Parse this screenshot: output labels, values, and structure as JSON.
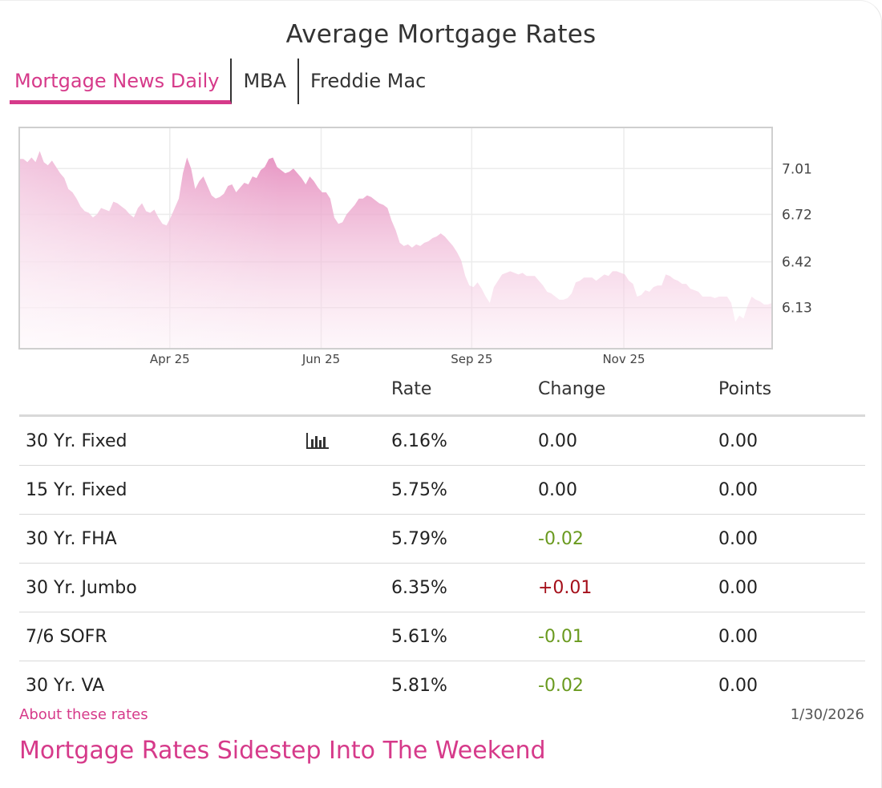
{
  "header": {
    "title": "Average Mortgage Rates"
  },
  "tabs": [
    {
      "label": "Mortgage News Daily",
      "active": true
    },
    {
      "label": "MBA",
      "active": false
    },
    {
      "label": "Freddie Mac",
      "active": false
    }
  ],
  "chart_data": {
    "type": "area",
    "title": "",
    "xlabel": "",
    "ylabel": "",
    "x_tick_labels": [
      "Apr 25",
      "Jun 25",
      "Sep 25",
      "Nov 25"
    ],
    "y_tick_labels": [
      "7.01",
      "6.72",
      "6.42",
      "6.13"
    ],
    "y_ticks": [
      7.01,
      6.72,
      6.42,
      6.13
    ],
    "ylim": [
      5.87,
      7.27
    ],
    "grid": true,
    "legend": "none",
    "fill_color": "#e58bbd",
    "series": [
      {
        "values": [
          7.07,
          7.07,
          7.05,
          7.08,
          7.05,
          7.12,
          7.05,
          7.03,
          7.06,
          7.02,
          6.98,
          6.95,
          6.88,
          6.86,
          6.82,
          6.77,
          6.74,
          6.73,
          6.7,
          6.72,
          6.76,
          6.75,
          6.74,
          6.8,
          6.79,
          6.77,
          6.75,
          6.72,
          6.7,
          6.76,
          6.79,
          6.74,
          6.73,
          6.75,
          6.7,
          6.66,
          6.65,
          6.7,
          6.76,
          6.82,
          6.98,
          7.08,
          7.01,
          6.88,
          6.93,
          6.96,
          6.9,
          6.84,
          6.82,
          6.83,
          6.85,
          6.9,
          6.91,
          6.86,
          6.89,
          6.92,
          6.91,
          6.96,
          6.95,
          7.0,
          7.02,
          7.07,
          7.08,
          7.02,
          7.0,
          6.98,
          6.99,
          7.01,
          6.98,
          6.95,
          6.91,
          6.96,
          6.93,
          6.89,
          6.86,
          6.86,
          6.82,
          6.7,
          6.66,
          6.67,
          6.72,
          6.75,
          6.78,
          6.82,
          6.82,
          6.84,
          6.83,
          6.81,
          6.79,
          6.78,
          6.76,
          6.68,
          6.62,
          6.54,
          6.52,
          6.53,
          6.51,
          6.53,
          6.52,
          6.54,
          6.55,
          6.57,
          6.58,
          6.6,
          6.58,
          6.55,
          6.52,
          6.48,
          6.43,
          6.33,
          6.27,
          6.26,
          6.29,
          6.25,
          6.2,
          6.16,
          6.26,
          6.3,
          6.34,
          6.35,
          6.36,
          6.35,
          6.34,
          6.35,
          6.33,
          6.33,
          6.33,
          6.3,
          6.27,
          6.23,
          6.22,
          6.2,
          6.18,
          6.18,
          6.19,
          6.22,
          6.29,
          6.3,
          6.32,
          6.32,
          6.32,
          6.3,
          6.32,
          6.34,
          6.33,
          6.36,
          6.36,
          6.35,
          6.34,
          6.3,
          6.28,
          6.2,
          6.21,
          6.24,
          6.23,
          6.26,
          6.27,
          6.27,
          6.34,
          6.33,
          6.31,
          6.3,
          6.28,
          6.28,
          6.25,
          6.24,
          6.23,
          6.2,
          6.2,
          6.2,
          6.19,
          6.2,
          6.2,
          6.2,
          6.16,
          6.04,
          6.08,
          6.06,
          6.14,
          6.2,
          6.18,
          6.17,
          6.15,
          6.15,
          6.16
        ]
      }
    ]
  },
  "table": {
    "headers": {
      "rate": "Rate",
      "change": "Change",
      "points": "Points"
    },
    "chart_icon": "bar-chart-icon",
    "rows": [
      {
        "name": "30 Yr. Fixed",
        "rate": "6.16%",
        "change": "0.00",
        "change_dir": "zero",
        "points": "0.00",
        "has_chart_icon": true
      },
      {
        "name": "15 Yr. Fixed",
        "rate": "5.75%",
        "change": "0.00",
        "change_dir": "zero",
        "points": "0.00"
      },
      {
        "name": "30 Yr. FHA",
        "rate": "5.79%",
        "change": "-0.02",
        "change_dir": "neg",
        "points": "0.00"
      },
      {
        "name": "30 Yr. Jumbo",
        "rate": "6.35%",
        "change": "+0.01",
        "change_dir": "pos",
        "points": "0.00"
      },
      {
        "name": "7/6 SOFR",
        "rate": "5.61%",
        "change": "-0.01",
        "change_dir": "neg",
        "points": "0.00"
      },
      {
        "name": "30 Yr. VA",
        "rate": "5.81%",
        "change": "-0.02",
        "change_dir": "neg",
        "points": "0.00"
      }
    ]
  },
  "footer": {
    "about_link": "About these rates",
    "date": "1/30/2026",
    "headline": "Mortgage Rates Sidestep Into The Weekend"
  },
  "colors": {
    "accent": "#d63a8a",
    "negative": "#6a9a1f",
    "positive": "#a50f1a"
  }
}
